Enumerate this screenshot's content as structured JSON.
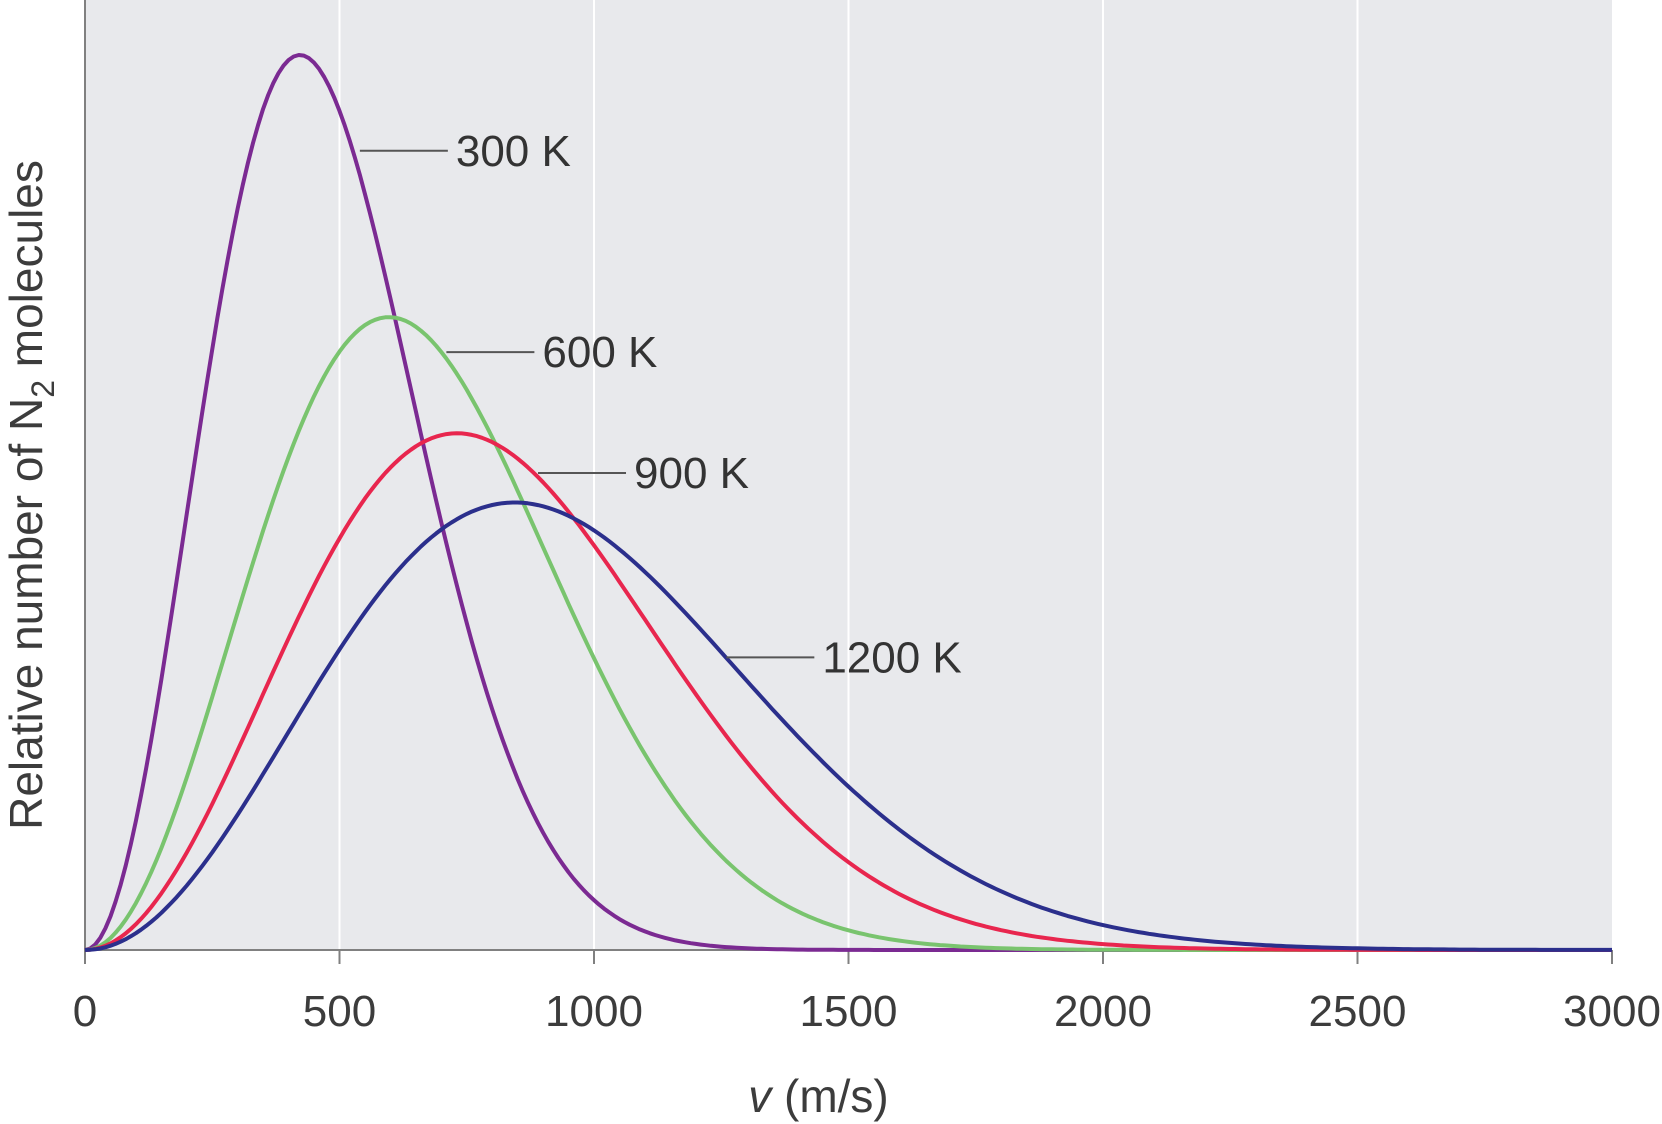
{
  "chart_data": {
    "type": "line",
    "title": "",
    "xlabel": {
      "italic": "v",
      "rest": " (m/s)"
    },
    "ylabel": {
      "pre": "Relative number of N",
      "sub": "2",
      "post": " molecules"
    },
    "xlim": [
      0,
      3000
    ],
    "ylim": [
      0,
      1
    ],
    "x_ticks": [
      "0",
      "500",
      "1000",
      "1500",
      "2000",
      "2500",
      "3000"
    ],
    "x_tick_values": [
      0,
      500,
      1000,
      1500,
      2000,
      2500,
      3000
    ],
    "grid": "vertical",
    "background_color": "#e8e9ec",
    "grid_color": "#ffffff",
    "axis_color": "#808080",
    "y_tick_labels": false,
    "series": [
      {
        "name": "300 K",
        "T": 300,
        "color": "#7b2a92",
        "label_x": 540,
        "label_y": 0.893
      },
      {
        "name": "600 K",
        "T": 600,
        "color": "#79c46e",
        "label_x": 710,
        "label_y": 0.668
      },
      {
        "name": "900 K",
        "T": 900,
        "color": "#e8264e",
        "label_x": 890,
        "label_y": 0.533
      },
      {
        "name": "1200 K",
        "T": 1200,
        "color": "#2b2f8c",
        "label_x": 1260,
        "label_y": 0.327
      }
    ]
  }
}
